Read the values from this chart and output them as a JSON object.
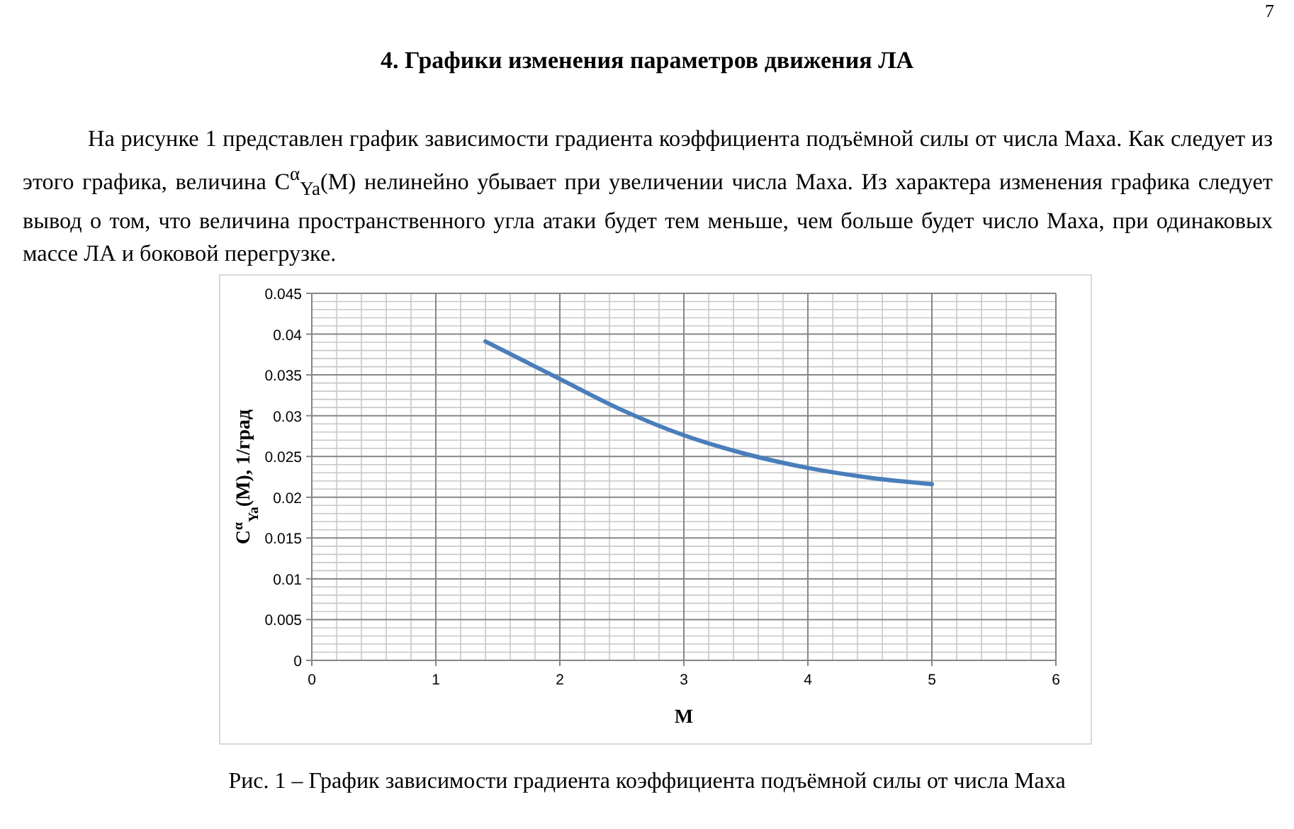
{
  "chart_data": {
    "type": "line",
    "title": "4.    Графики изменения параметров движения ЛА",
    "subtitle": "На рисунке 1 представлен график зависимости градиента коэффициента подъёмной силы от числа Маха. Как следует из этого графика, величина C$^{α}$$_{Ya}$(M) нелинейно убывает при увеличении числа Маха. Из характера изменения графика следует вывод о том, что величина пространственного угла атаки будет тем меньше, чем больше будет число Маха, при одинаковых массе ЛА и боковой перегрузке.",
    "xlabel": "M",
    "ylabel": "C$^{α}$$_{Ya}$(M), 1/град",
    "annotations": [
      "7",
      "Рис. 1 – График зависимости градиента коэффициента подъёмной силы от числа Маха"
    ],
    "x": [
      1.4,
      2,
      2.5,
      3,
      3.5,
      4,
      4.5,
      5
    ],
    "series": [
      {
        "color": "#4a7ebb",
        "values": [
          0.0391,
          0.0345,
          0.0307,
          0.0276,
          0.0253,
          0.0236,
          0.0224,
          0.0216
        ]
      }
    ],
    "xlim": [
      0,
      6
    ],
    "xticks": [
      0,
      1,
      2,
      3,
      4,
      5,
      6
    ],
    "ylim": [
      0,
      0.045
    ],
    "yticks": [
      0,
      0.005,
      0.01,
      0.015,
      0.02,
      0.025,
      0.03,
      0.035,
      0.04,
      0.045
    ],
    "grid": true,
    "marker": "none",
    "line_style": "solid"
  }
}
